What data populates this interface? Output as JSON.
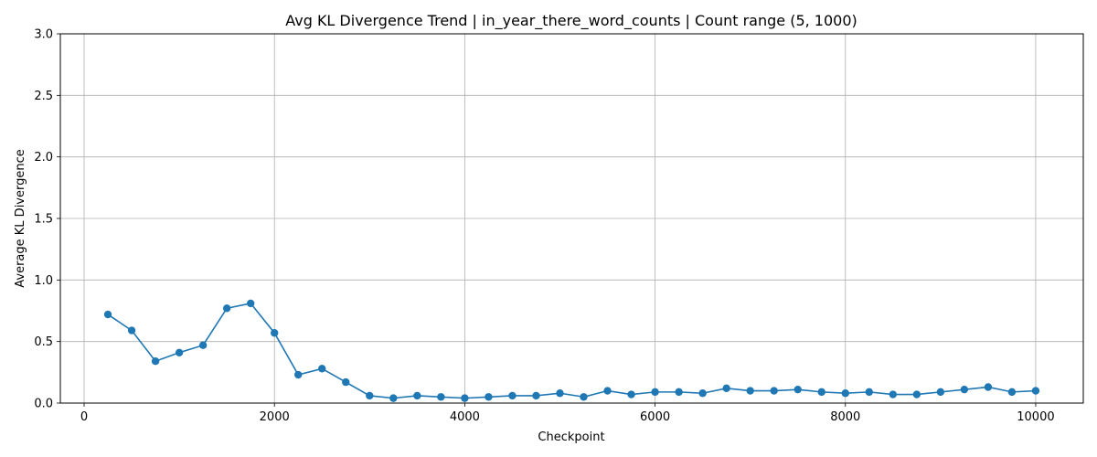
{
  "chart_data": {
    "type": "line",
    "title": "Avg KL Divergence Trend | in_year_there_word_counts | Count range (5, 1000)",
    "xlabel": "Checkpoint",
    "ylabel": "Average KL Divergence",
    "xlim": [
      -250,
      10500
    ],
    "ylim": [
      0,
      3
    ],
    "x_ticks": [
      0,
      2000,
      4000,
      6000,
      8000,
      10000
    ],
    "y_ticks": [
      0.0,
      0.5,
      1.0,
      1.5,
      2.0,
      2.5,
      3.0
    ],
    "x_tick_labels": [
      "0",
      "2000",
      "4000",
      "6000",
      "8000",
      "10000"
    ],
    "y_tick_labels": [
      "0.0",
      "0.5",
      "1.0",
      "1.5",
      "2.0",
      "2.5",
      "3.0"
    ],
    "grid": true,
    "color": "#1f77b4",
    "series": [
      {
        "x": [
          250,
          500,
          750,
          1000,
          1250,
          1500,
          1750,
          2000,
          2250,
          2500,
          2750,
          3000,
          3250,
          3500,
          3750,
          4000,
          4250,
          4500,
          4750,
          5000,
          5250,
          5500,
          5750,
          6000,
          6250,
          6500,
          6750,
          7000,
          7250,
          7500,
          7750,
          8000,
          8250,
          8500,
          8750,
          9000,
          9250,
          9500,
          9750,
          10000
        ],
        "values": [
          0.72,
          0.59,
          0.34,
          0.41,
          0.47,
          0.77,
          0.81,
          0.57,
          0.23,
          0.28,
          0.17,
          0.06,
          0.04,
          0.06,
          0.05,
          0.04,
          0.05,
          0.06,
          0.06,
          0.08,
          0.05,
          0.1,
          0.07,
          0.09,
          0.09,
          0.08,
          0.12,
          0.1,
          0.1,
          0.11,
          0.09,
          0.08,
          0.09,
          0.07,
          0.07,
          0.09,
          0.11,
          0.13,
          0.09,
          0.1
        ]
      }
    ]
  }
}
